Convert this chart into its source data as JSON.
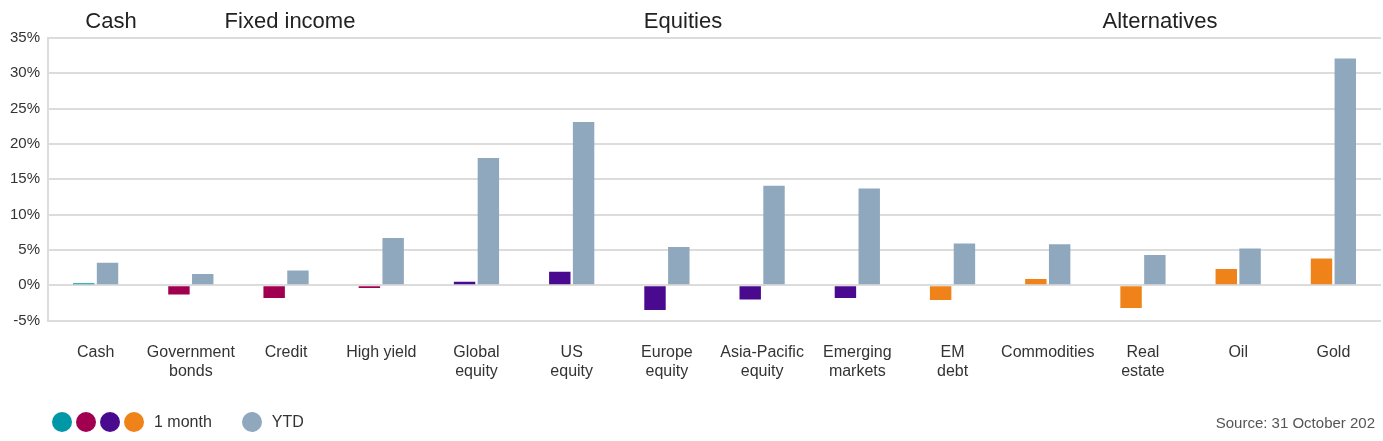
{
  "chart_data": {
    "type": "bar",
    "categories": [
      "Cash",
      "Government\nbonds",
      "Credit",
      "High yield",
      "Global\nequity",
      "US\nequity",
      "Europe\nequity",
      "Asia-Pacific\nequity",
      "Emerging\nmarkets",
      "EM\ndebt",
      "Commodities",
      "Real\nestate",
      "Oil",
      "Gold"
    ],
    "series": [
      {
        "name": "1 month",
        "colors": [
          "#0097a7",
          "#a0004f",
          "#a0004f",
          "#a0004f",
          "#4a0a90",
          "#4a0a90",
          "#4a0a90",
          "#4a0a90",
          "#4a0a90",
          "#f0821a",
          "#f0821a",
          "#f0821a",
          "#f0821a",
          "#f0821a"
        ],
        "values": [
          0.3,
          -1.3,
          -1.8,
          -0.4,
          0.5,
          1.9,
          -3.5,
          -2.0,
          -1.8,
          -2.1,
          0.9,
          -3.2,
          2.3,
          3.8
        ]
      },
      {
        "name": "YTD",
        "color": "#8fa8be",
        "values": [
          3.2,
          1.6,
          2.1,
          6.7,
          18.0,
          23.1,
          5.4,
          14.1,
          13.7,
          5.9,
          5.8,
          4.3,
          5.2,
          32.1
        ]
      }
    ],
    "ylim": [
      -5,
      35
    ],
    "yticks": [
      {
        "value": -5,
        "label": "-5%"
      },
      {
        "value": 0,
        "label": "0%"
      },
      {
        "value": 5,
        "label": "5%"
      },
      {
        "value": 10,
        "label": "10%"
      },
      {
        "value": 15,
        "label": "15%"
      },
      {
        "value": 20,
        "label": "20%"
      },
      {
        "value": 25,
        "label": "25%"
      },
      {
        "value": 30,
        "label": "30%"
      },
      {
        "value": 35,
        "label": "35%"
      }
    ],
    "grid": "y",
    "legend": "bottom left",
    "annotations": [
      "Cash",
      "Fixed income",
      "Equities",
      "Alternatives",
      "Source: 31 October 202"
    ]
  }
}
